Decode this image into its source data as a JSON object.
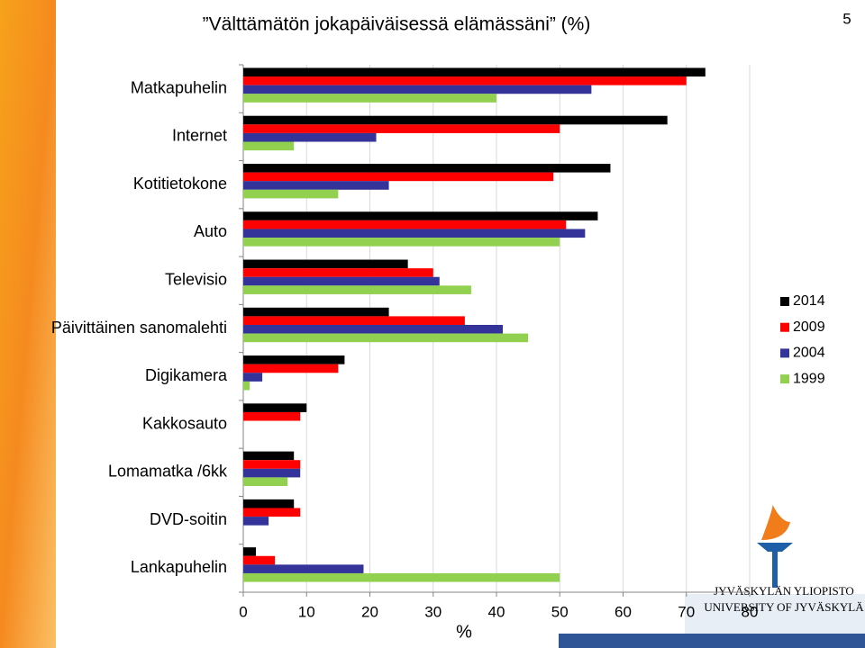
{
  "chart_data": {
    "type": "hbar",
    "title": "”Välttämätön jokapäiväisessä elämässäni” (%)",
    "xlabel": "%",
    "categories": [
      "Matkapuhelin",
      "Internet",
      "Kotitietokone",
      "Auto",
      "Televisio",
      "Päivittäinen sanomalehti",
      "Digikamera",
      "Kakkosauto",
      "Lomamatka /6kk",
      "DVD-soitin",
      "Lankapuhelin"
    ],
    "series": [
      {
        "name": "2014",
        "color": "#000000",
        "values": [
          73,
          67,
          58,
          56,
          26,
          23,
          16,
          10,
          8,
          8,
          2
        ]
      },
      {
        "name": "2009",
        "color": "#ff0000",
        "values": [
          70,
          50,
          49,
          51,
          30,
          35,
          15,
          9,
          9,
          9,
          5
        ]
      },
      {
        "name": "2004",
        "color": "#333399",
        "values": [
          55,
          21,
          23,
          54,
          31,
          41,
          3,
          null,
          9,
          4,
          19
        ]
      },
      {
        "name": "1999",
        "color": "#92d050",
        "values": [
          40,
          8,
          15,
          50,
          36,
          45,
          1,
          null,
          7,
          null,
          50
        ]
      }
    ],
    "xlim": [
      0,
      80
    ],
    "xticks": [
      0,
      10,
      20,
      30,
      40,
      50,
      60,
      70,
      80
    ],
    "grid": true,
    "legend": "right"
  },
  "page_number": "5",
  "logo": [
    "JYVÄSKYLÄN YLIOPISTO",
    "UNIVERSITY OF JYVÄSKYLÄ"
  ]
}
